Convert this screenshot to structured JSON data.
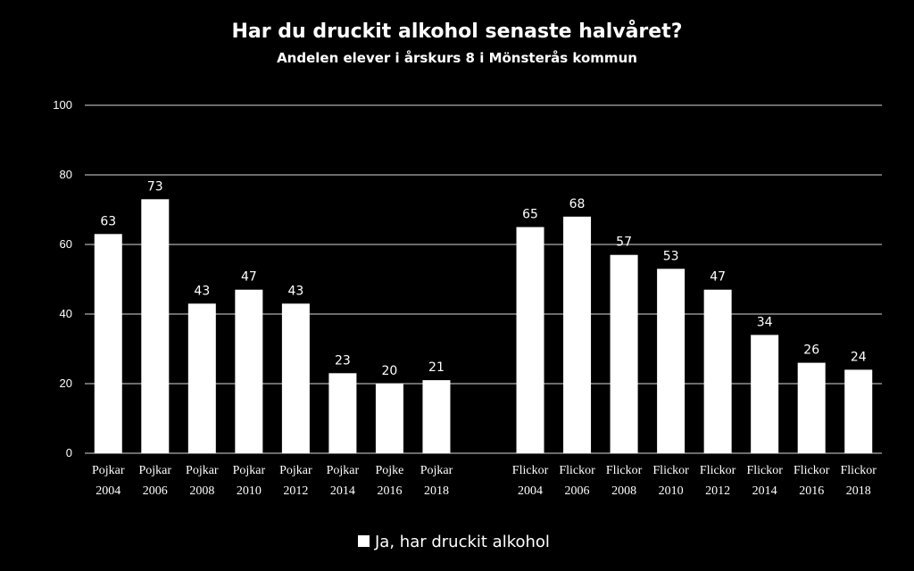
{
  "colors": {
    "background": "#000000",
    "bar": "#ffffff",
    "grid": "#d9d9d9",
    "text": "#ffffff"
  },
  "chart_data": {
    "type": "bar",
    "title": "Har du druckit alkohol senaste halvåret?",
    "subtitle": "Andelen elever i årskurs 8 i Mönsterås kommun",
    "xlabel": "",
    "ylabel": "",
    "ylim": [
      0,
      100
    ],
    "yticks": [
      "0",
      "20",
      "40",
      "60",
      "80",
      "100"
    ],
    "grid": true,
    "legend_position": "bottom",
    "categories": [
      [
        "Pojkar",
        "2004"
      ],
      [
        "Pojkar",
        "2006"
      ],
      [
        "Pojkar",
        "2008"
      ],
      [
        "Pojkar",
        "2010"
      ],
      [
        "Pojkar",
        "2012"
      ],
      [
        "Pojkar",
        "2014"
      ],
      [
        "Pojke",
        "2016"
      ],
      [
        "Pojkar",
        "2018"
      ],
      [
        "",
        ""
      ],
      [
        "Flickor",
        "2004"
      ],
      [
        "Flickor",
        "2006"
      ],
      [
        "Flickor",
        "2008"
      ],
      [
        "Flickor",
        "2010"
      ],
      [
        "Flickor",
        "2012"
      ],
      [
        "Flickor",
        "2014"
      ],
      [
        "Flickor",
        "2016"
      ],
      [
        "Flickor",
        "2018"
      ]
    ],
    "series": [
      {
        "name": "Ja, har druckit alkohol",
        "values": [
          63,
          73,
          43,
          47,
          43,
          23,
          20,
          21,
          null,
          65,
          68,
          57,
          53,
          47,
          34,
          26,
          24
        ]
      }
    ]
  }
}
